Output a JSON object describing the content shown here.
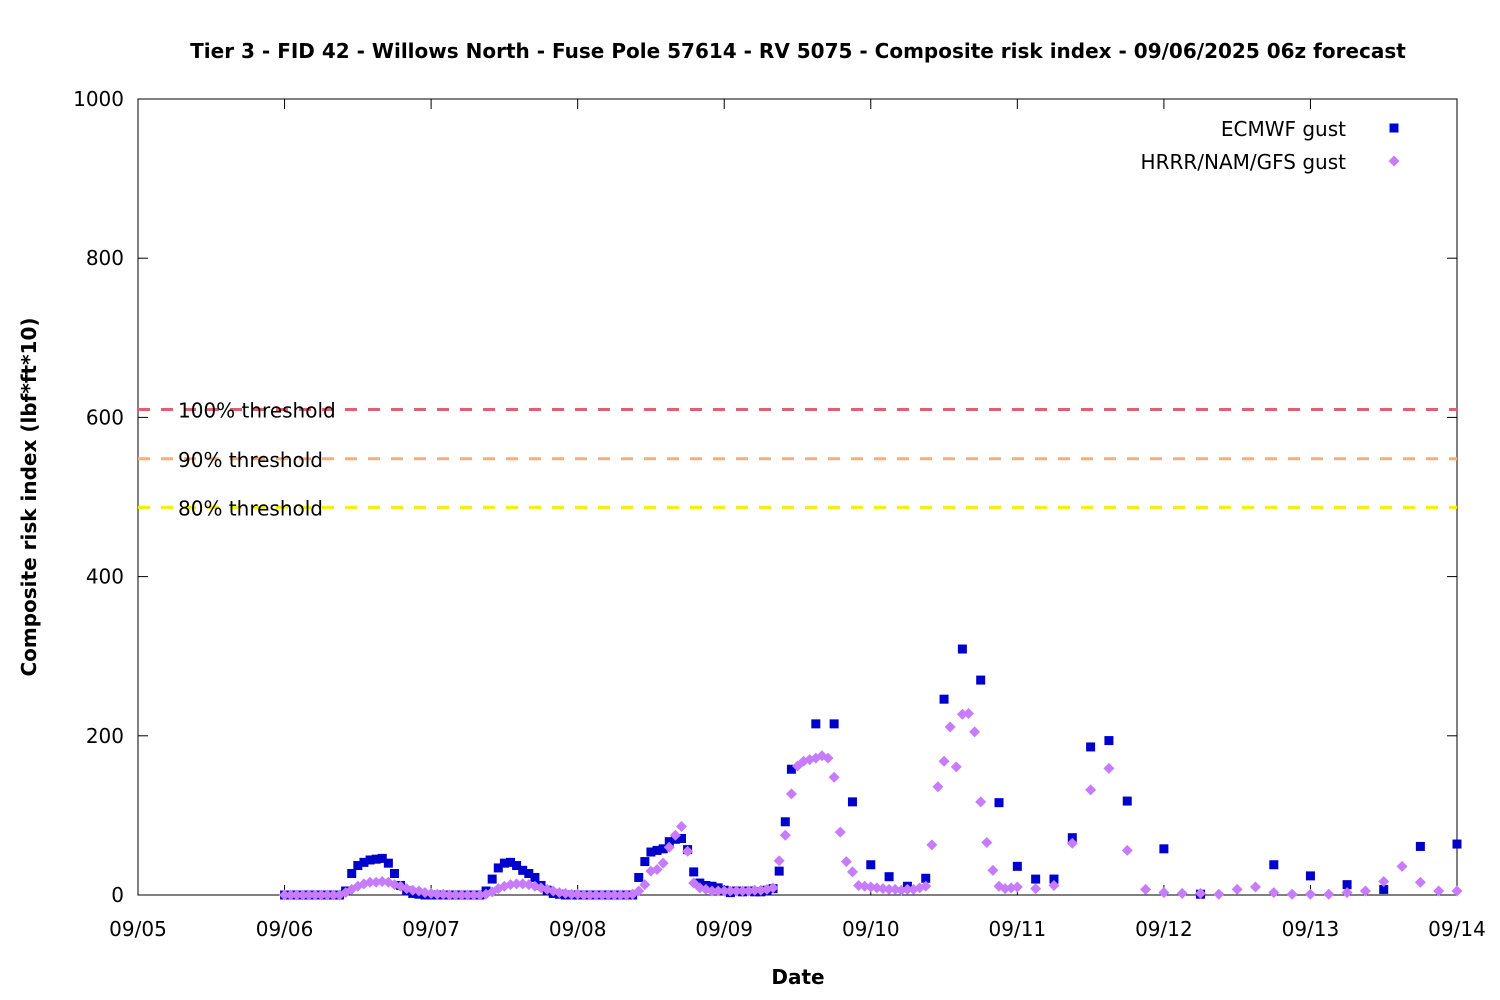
{
  "chart_data": {
    "type": "scatter",
    "title": "Tier 3 - FID 42 - Willows North - Fuse Pole 57614 - RV 5075 - Composite risk index - 09/06/2025 06z forecast",
    "xlabel": "Date",
    "ylabel": "Composite risk index (lbf*ft*10)",
    "xlim": [
      "2025-09-05T00:00",
      "2025-09-14T00:00"
    ],
    "ylim": [
      0,
      1000
    ],
    "x_ticks": [
      "09/05",
      "09/06",
      "09/07",
      "09/08",
      "09/09",
      "09/10",
      "09/11",
      "09/12",
      "09/13",
      "09/14"
    ],
    "y_ticks": [
      "0",
      "200",
      "400",
      "600",
      "800",
      "1000"
    ],
    "grid": false,
    "legend_position": "top-right",
    "thresholds": [
      {
        "label": "100% threshold",
        "value": 610,
        "color": "#e0606f"
      },
      {
        "label": "90% threshold",
        "value": 548,
        "color": "#f2b07f"
      },
      {
        "label": "80% threshold",
        "value": 487,
        "color": "#f5f000"
      }
    ],
    "series": [
      {
        "name": "ECMWF gust",
        "color": "#0000cc",
        "marker": "square",
        "points": [
          [
            "2025-09-06T00:00",
            0
          ],
          [
            "2025-09-06T01:00",
            0
          ],
          [
            "2025-09-06T02:00",
            0
          ],
          [
            "2025-09-06T03:00",
            0
          ],
          [
            "2025-09-06T04:00",
            0
          ],
          [
            "2025-09-06T05:00",
            0
          ],
          [
            "2025-09-06T06:00",
            0
          ],
          [
            "2025-09-06T07:00",
            0
          ],
          [
            "2025-09-06T08:00",
            0
          ],
          [
            "2025-09-06T09:00",
            0
          ],
          [
            "2025-09-06T10:00",
            5
          ],
          [
            "2025-09-06T11:00",
            27
          ],
          [
            "2025-09-06T12:00",
            37
          ],
          [
            "2025-09-06T13:00",
            41
          ],
          [
            "2025-09-06T14:00",
            44
          ],
          [
            "2025-09-06T15:00",
            45
          ],
          [
            "2025-09-06T16:00",
            46
          ],
          [
            "2025-09-06T17:00",
            40
          ],
          [
            "2025-09-06T18:00",
            27
          ],
          [
            "2025-09-06T19:00",
            12
          ],
          [
            "2025-09-06T20:00",
            5
          ],
          [
            "2025-09-06T21:00",
            2
          ],
          [
            "2025-09-06T22:00",
            1
          ],
          [
            "2025-09-06T23:00",
            0
          ],
          [
            "2025-09-07T00:00",
            0
          ],
          [
            "2025-09-07T01:00",
            0
          ],
          [
            "2025-09-07T02:00",
            0
          ],
          [
            "2025-09-07T03:00",
            0
          ],
          [
            "2025-09-07T04:00",
            0
          ],
          [
            "2025-09-07T05:00",
            0
          ],
          [
            "2025-09-07T06:00",
            0
          ],
          [
            "2025-09-07T07:00",
            0
          ],
          [
            "2025-09-07T08:00",
            0
          ],
          [
            "2025-09-07T09:00",
            5
          ],
          [
            "2025-09-07T10:00",
            20
          ],
          [
            "2025-09-07T11:00",
            34
          ],
          [
            "2025-09-07T12:00",
            40
          ],
          [
            "2025-09-07T13:00",
            41
          ],
          [
            "2025-09-07T14:00",
            37
          ],
          [
            "2025-09-07T15:00",
            31
          ],
          [
            "2025-09-07T16:00",
            27
          ],
          [
            "2025-09-07T17:00",
            22
          ],
          [
            "2025-09-07T18:00",
            12
          ],
          [
            "2025-09-07T19:00",
            6
          ],
          [
            "2025-09-07T20:00",
            2
          ],
          [
            "2025-09-07T21:00",
            1
          ],
          [
            "2025-09-07T22:00",
            0
          ],
          [
            "2025-09-07T23:00",
            0
          ],
          [
            "2025-09-08T00:00",
            0
          ],
          [
            "2025-09-08T01:00",
            0
          ],
          [
            "2025-09-08T02:00",
            0
          ],
          [
            "2025-09-08T03:00",
            0
          ],
          [
            "2025-09-08T04:00",
            0
          ],
          [
            "2025-09-08T05:00",
            0
          ],
          [
            "2025-09-08T06:00",
            0
          ],
          [
            "2025-09-08T07:00",
            0
          ],
          [
            "2025-09-08T08:00",
            0
          ],
          [
            "2025-09-08T09:00",
            0
          ],
          [
            "2025-09-08T10:00",
            22
          ],
          [
            "2025-09-08T11:00",
            42
          ],
          [
            "2025-09-08T12:00",
            54
          ],
          [
            "2025-09-08T13:00",
            56
          ],
          [
            "2025-09-08T14:00",
            58
          ],
          [
            "2025-09-08T15:00",
            67
          ],
          [
            "2025-09-08T16:00",
            70
          ],
          [
            "2025-09-08T17:00",
            71
          ],
          [
            "2025-09-08T18:00",
            57
          ],
          [
            "2025-09-08T19:00",
            29
          ],
          [
            "2025-09-08T20:00",
            15
          ],
          [
            "2025-09-08T21:00",
            12
          ],
          [
            "2025-09-08T22:00",
            11
          ],
          [
            "2025-09-08T23:00",
            9
          ],
          [
            "2025-09-09T00:00",
            6
          ],
          [
            "2025-09-09T01:00",
            3
          ],
          [
            "2025-09-09T02:00",
            5
          ],
          [
            "2025-09-09T03:00",
            4
          ],
          [
            "2025-09-09T04:00",
            5
          ],
          [
            "2025-09-09T05:00",
            4
          ],
          [
            "2025-09-09T06:00",
            4
          ],
          [
            "2025-09-09T07:00",
            6
          ],
          [
            "2025-09-09T08:00",
            8
          ],
          [
            "2025-09-09T09:00",
            30
          ],
          [
            "2025-09-09T10:00",
            92
          ],
          [
            "2025-09-09T11:00",
            158
          ],
          [
            "2025-09-09T15:00",
            215
          ],
          [
            "2025-09-09T18:00",
            215
          ],
          [
            "2025-09-09T21:00",
            117
          ],
          [
            "2025-09-10T00:00",
            38
          ],
          [
            "2025-09-10T03:00",
            23
          ],
          [
            "2025-09-10T06:00",
            11
          ],
          [
            "2025-09-10T09:00",
            21
          ],
          [
            "2025-09-10T12:00",
            246
          ],
          [
            "2025-09-10T15:00",
            309
          ],
          [
            "2025-09-10T18:00",
            270
          ],
          [
            "2025-09-10T21:00",
            116
          ],
          [
            "2025-09-11T00:00",
            36
          ],
          [
            "2025-09-11T03:00",
            20
          ],
          [
            "2025-09-11T06:00",
            20
          ],
          [
            "2025-09-11T09:00",
            72
          ],
          [
            "2025-09-11T12:00",
            186
          ],
          [
            "2025-09-11T15:00",
            194
          ],
          [
            "2025-09-11T18:00",
            118
          ],
          [
            "2025-09-12T00:00",
            58
          ],
          [
            "2025-09-12T06:00",
            1
          ],
          [
            "2025-09-12T18:00",
            38
          ],
          [
            "2025-09-13T00:00",
            24
          ],
          [
            "2025-09-13T06:00",
            13
          ],
          [
            "2025-09-13T12:00",
            7
          ],
          [
            "2025-09-13T18:00",
            61
          ],
          [
            "2025-09-14T00:00",
            64
          ]
        ]
      },
      {
        "name": "HRRR/NAM/GFS gust",
        "color": "#c77cff",
        "marker": "diamond",
        "points": [
          [
            "2025-09-06T00:00",
            0
          ],
          [
            "2025-09-06T01:00",
            0
          ],
          [
            "2025-09-06T02:00",
            0
          ],
          [
            "2025-09-06T03:00",
            0
          ],
          [
            "2025-09-06T04:00",
            0
          ],
          [
            "2025-09-06T05:00",
            0
          ],
          [
            "2025-09-06T06:00",
            0
          ],
          [
            "2025-09-06T07:00",
            0
          ],
          [
            "2025-09-06T08:00",
            0
          ],
          [
            "2025-09-06T09:00",
            0
          ],
          [
            "2025-09-06T10:00",
            3
          ],
          [
            "2025-09-06T11:00",
            7
          ],
          [
            "2025-09-06T12:00",
            11
          ],
          [
            "2025-09-06T13:00",
            14
          ],
          [
            "2025-09-06T14:00",
            16
          ],
          [
            "2025-09-06T15:00",
            16
          ],
          [
            "2025-09-06T16:00",
            17
          ],
          [
            "2025-09-06T17:00",
            16
          ],
          [
            "2025-09-06T18:00",
            13
          ],
          [
            "2025-09-06T19:00",
            11
          ],
          [
            "2025-09-06T20:00",
            8
          ],
          [
            "2025-09-06T21:00",
            6
          ],
          [
            "2025-09-06T22:00",
            5
          ],
          [
            "2025-09-06T23:00",
            3
          ],
          [
            "2025-09-07T00:00",
            2
          ],
          [
            "2025-09-07T01:00",
            1
          ],
          [
            "2025-09-07T02:00",
            1
          ],
          [
            "2025-09-07T03:00",
            0
          ],
          [
            "2025-09-07T04:00",
            0
          ],
          [
            "2025-09-07T05:00",
            0
          ],
          [
            "2025-09-07T06:00",
            0
          ],
          [
            "2025-09-07T07:00",
            0
          ],
          [
            "2025-09-07T08:00",
            0
          ],
          [
            "2025-09-07T09:00",
            1
          ],
          [
            "2025-09-07T10:00",
            4
          ],
          [
            "2025-09-07T11:00",
            8
          ],
          [
            "2025-09-07T12:00",
            11
          ],
          [
            "2025-09-07T13:00",
            13
          ],
          [
            "2025-09-07T14:00",
            14
          ],
          [
            "2025-09-07T15:00",
            14
          ],
          [
            "2025-09-07T16:00",
            13
          ],
          [
            "2025-09-07T17:00",
            11
          ],
          [
            "2025-09-07T18:00",
            9
          ],
          [
            "2025-09-07T19:00",
            7
          ],
          [
            "2025-09-07T20:00",
            5
          ],
          [
            "2025-09-07T21:00",
            3
          ],
          [
            "2025-09-07T22:00",
            2
          ],
          [
            "2025-09-07T23:00",
            1
          ],
          [
            "2025-09-08T00:00",
            1
          ],
          [
            "2025-09-08T01:00",
            0
          ],
          [
            "2025-09-08T02:00",
            0
          ],
          [
            "2025-09-08T03:00",
            0
          ],
          [
            "2025-09-08T04:00",
            0
          ],
          [
            "2025-09-08T05:00",
            0
          ],
          [
            "2025-09-08T06:00",
            0
          ],
          [
            "2025-09-08T07:00",
            0
          ],
          [
            "2025-09-08T08:00",
            0
          ],
          [
            "2025-09-08T09:00",
            1
          ],
          [
            "2025-09-08T10:00",
            5
          ],
          [
            "2025-09-08T11:00",
            13
          ],
          [
            "2025-09-08T12:00",
            30
          ],
          [
            "2025-09-08T13:00",
            32
          ],
          [
            "2025-09-08T14:00",
            40
          ],
          [
            "2025-09-08T15:00",
            60
          ],
          [
            "2025-09-08T16:00",
            75
          ],
          [
            "2025-09-08T17:00",
            86
          ],
          [
            "2025-09-08T18:00",
            55
          ],
          [
            "2025-09-08T19:00",
            15
          ],
          [
            "2025-09-08T20:00",
            9
          ],
          [
            "2025-09-08T21:00",
            7
          ],
          [
            "2025-09-08T22:00",
            5
          ],
          [
            "2025-09-08T23:00",
            5
          ],
          [
            "2025-09-09T00:00",
            5
          ],
          [
            "2025-09-09T01:00",
            5
          ],
          [
            "2025-09-09T02:00",
            5
          ],
          [
            "2025-09-09T03:00",
            5
          ],
          [
            "2025-09-09T04:00",
            5
          ],
          [
            "2025-09-09T05:00",
            6
          ],
          [
            "2025-09-09T06:00",
            6
          ],
          [
            "2025-09-09T07:00",
            7
          ],
          [
            "2025-09-09T08:00",
            9
          ],
          [
            "2025-09-09T09:00",
            43
          ],
          [
            "2025-09-09T10:00",
            75
          ],
          [
            "2025-09-09T11:00",
            127
          ],
          [
            "2025-09-09T12:00",
            162
          ],
          [
            "2025-09-09T13:00",
            168
          ],
          [
            "2025-09-09T14:00",
            170
          ],
          [
            "2025-09-09T15:00",
            172
          ],
          [
            "2025-09-09T16:00",
            175
          ],
          [
            "2025-09-09T17:00",
            172
          ],
          [
            "2025-09-09T18:00",
            148
          ],
          [
            "2025-09-09T19:00",
            79
          ],
          [
            "2025-09-09T20:00",
            42
          ],
          [
            "2025-09-09T21:00",
            29
          ],
          [
            "2025-09-09T22:00",
            12
          ],
          [
            "2025-09-09T23:00",
            11
          ],
          [
            "2025-09-10T00:00",
            10
          ],
          [
            "2025-09-10T01:00",
            9
          ],
          [
            "2025-09-10T02:00",
            8
          ],
          [
            "2025-09-10T03:00",
            7
          ],
          [
            "2025-09-10T04:00",
            7
          ],
          [
            "2025-09-10T05:00",
            6
          ],
          [
            "2025-09-10T06:00",
            7
          ],
          [
            "2025-09-10T07:00",
            7
          ],
          [
            "2025-09-10T08:00",
            9
          ],
          [
            "2025-09-10T09:00",
            11
          ],
          [
            "2025-09-10T10:00",
            63
          ],
          [
            "2025-09-10T11:00",
            136
          ],
          [
            "2025-09-10T12:00",
            168
          ],
          [
            "2025-09-10T13:00",
            211
          ],
          [
            "2025-09-10T14:00",
            161
          ],
          [
            "2025-09-10T15:00",
            227
          ],
          [
            "2025-09-10T16:00",
            228
          ],
          [
            "2025-09-10T17:00",
            205
          ],
          [
            "2025-09-10T18:00",
            117
          ],
          [
            "2025-09-10T19:00",
            66
          ],
          [
            "2025-09-10T20:00",
            31
          ],
          [
            "2025-09-10T21:00",
            11
          ],
          [
            "2025-09-10T22:00",
            8
          ],
          [
            "2025-09-10T23:00",
            9
          ],
          [
            "2025-09-11T00:00",
            10
          ],
          [
            "2025-09-11T03:00",
            8
          ],
          [
            "2025-09-11T06:00",
            12
          ],
          [
            "2025-09-11T09:00",
            65
          ],
          [
            "2025-09-11T12:00",
            132
          ],
          [
            "2025-09-11T15:00",
            159
          ],
          [
            "2025-09-11T18:00",
            56
          ],
          [
            "2025-09-11T21:00",
            7
          ],
          [
            "2025-09-12T00:00",
            3
          ],
          [
            "2025-09-12T03:00",
            2
          ],
          [
            "2025-09-12T06:00",
            2
          ],
          [
            "2025-09-12T09:00",
            1
          ],
          [
            "2025-09-12T12:00",
            7
          ],
          [
            "2025-09-12T15:00",
            10
          ],
          [
            "2025-09-12T18:00",
            3
          ],
          [
            "2025-09-12T21:00",
            1
          ],
          [
            "2025-09-13T00:00",
            1
          ],
          [
            "2025-09-13T03:00",
            1
          ],
          [
            "2025-09-13T06:00",
            3
          ],
          [
            "2025-09-13T09:00",
            5
          ],
          [
            "2025-09-13T12:00",
            17
          ],
          [
            "2025-09-13T15:00",
            36
          ],
          [
            "2025-09-13T18:00",
            16
          ],
          [
            "2025-09-13T21:00",
            5
          ],
          [
            "2025-09-14T00:00",
            5
          ]
        ]
      }
    ]
  }
}
